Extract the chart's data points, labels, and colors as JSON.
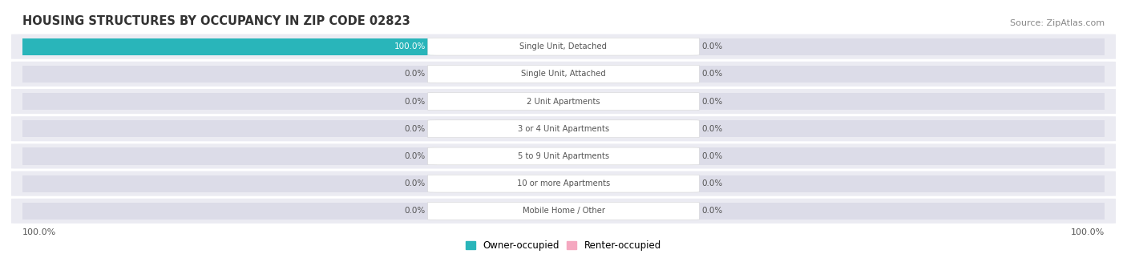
{
  "title": "HOUSING STRUCTURES BY OCCUPANCY IN ZIP CODE 02823",
  "source": "Source: ZipAtlas.com",
  "categories": [
    "Single Unit, Detached",
    "Single Unit, Attached",
    "2 Unit Apartments",
    "3 or 4 Unit Apartments",
    "5 to 9 Unit Apartments",
    "10 or more Apartments",
    "Mobile Home / Other"
  ],
  "owner_values": [
    100.0,
    0.0,
    0.0,
    0.0,
    0.0,
    0.0,
    0.0
  ],
  "renter_values": [
    0.0,
    0.0,
    0.0,
    0.0,
    0.0,
    0.0,
    0.0
  ],
  "owner_color": "#29b5ba",
  "renter_color": "#f5a8c0",
  "bar_bg_color": "#dcdce8",
  "row_bg_color": "#ebebf2",
  "label_color": "#555555",
  "title_color": "#333333",
  "source_color": "#888888",
  "max_value": 100.0,
  "figsize": [
    14.06,
    3.42
  ],
  "dpi": 100,
  "bottom_left_label": "100.0%",
  "bottom_right_label": "100.0%",
  "legend_owner": "Owner-occupied",
  "legend_renter": "Renter-occupied"
}
